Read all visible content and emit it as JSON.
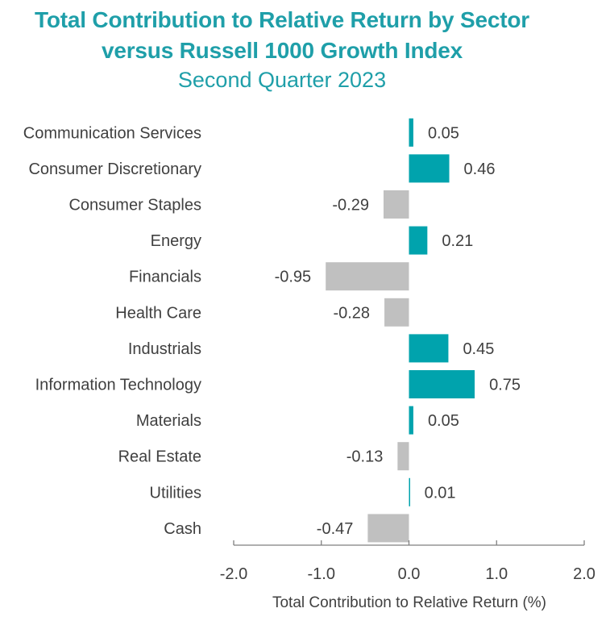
{
  "chart_data": {
    "type": "bar",
    "orientation": "horizontal",
    "title_line1": "Total Contribution to Relative Return by Sector",
    "title_line2": "versus Russell 1000 Growth Index",
    "subtitle": "Second Quarter 2023",
    "xlabel": "Total Contribution to Relative Return (%)",
    "ylabel": "",
    "xlim": [
      -2.0,
      2.0
    ],
    "xticks": [
      "-2.0",
      "-1.0",
      "0.0",
      "1.0",
      "2.0"
    ],
    "xtick_values": [
      -2.0,
      -1.0,
      0.0,
      1.0,
      2.0
    ],
    "categories": [
      "Communication Services",
      "Consumer Discretionary",
      "Consumer Staples",
      "Energy",
      "Financials",
      "Health Care",
      "Industrials",
      "Information Technology",
      "Materials",
      "Real Estate",
      "Utilities",
      "Cash"
    ],
    "values": [
      0.05,
      0.46,
      -0.29,
      0.21,
      -0.95,
      -0.28,
      0.45,
      0.75,
      0.05,
      -0.13,
      0.01,
      -0.47
    ],
    "value_labels": [
      "0.05",
      "0.46",
      "-0.29",
      "0.21",
      "-0.95",
      "-0.28",
      "0.45",
      "0.75",
      "0.05",
      "-0.13",
      "0.01",
      "-0.47"
    ],
    "grid": false,
    "legend": "none",
    "colors": {
      "positive": "#00a3ad",
      "negative": "#c0c0c0",
      "title": "#1f9fa9",
      "text": "#404040",
      "axis": "#7f7f7f"
    }
  }
}
